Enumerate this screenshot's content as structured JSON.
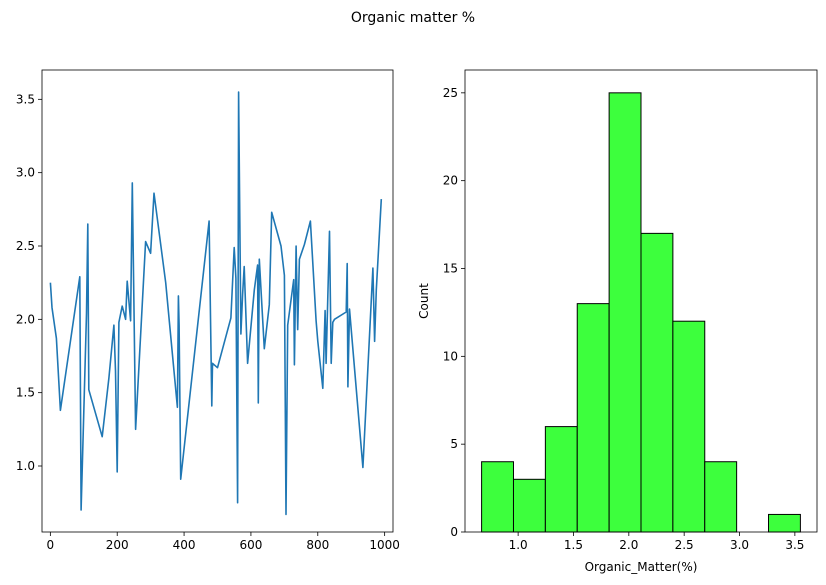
{
  "figure": {
    "title": "Organic matter %"
  },
  "chart_data": [
    {
      "type": "line",
      "title": "",
      "xlabel": "",
      "ylabel": "",
      "xlim": [
        -25,
        1025
      ],
      "ylim": [
        0.55,
        3.7
      ],
      "xticks": [
        0,
        200,
        400,
        600,
        800,
        1000
      ],
      "yticks": [
        1.0,
        1.5,
        2.0,
        2.5,
        3.0,
        3.5
      ],
      "grid": false,
      "color": "#1f77b4",
      "series": [
        {
          "x": [
            0,
            5,
            18,
            30,
            88,
            92,
            108,
            112,
            115,
            155,
            175,
            190,
            195,
            200,
            205,
            215,
            225,
            230,
            240,
            245,
            255,
            285,
            300,
            310,
            345,
            380,
            383,
            385,
            390,
            475,
            483,
            485,
            500,
            540,
            550,
            555,
            560,
            563,
            570,
            575,
            580,
            590,
            610,
            620,
            622,
            625,
            640,
            655,
            662,
            690,
            700,
            705,
            710,
            728,
            730,
            735,
            740,
            745,
            760,
            778,
            795,
            800,
            815,
            822,
            825,
            835,
            840,
            845,
            850,
            885,
            888,
            890,
            895,
            935,
            965,
            970,
            975,
            990
          ],
          "y": [
            2.25,
            2.08,
            1.87,
            1.38,
            2.29,
            0.7,
            2.04,
            2.65,
            1.52,
            1.2,
            1.6,
            1.96,
            1.65,
            0.96,
            1.98,
            2.09,
            2.0,
            2.26,
            1.99,
            2.93,
            1.25,
            2.53,
            2.45,
            2.86,
            2.25,
            1.4,
            2.16,
            1.96,
            0.91,
            2.67,
            1.41,
            1.7,
            1.67,
            2.01,
            2.49,
            2.28,
            0.75,
            3.55,
            1.9,
            2.17,
            2.36,
            1.7,
            2.2,
            2.37,
            1.43,
            2.41,
            1.8,
            2.1,
            2.73,
            2.5,
            2.3,
            0.67,
            1.96,
            2.27,
            1.69,
            2.5,
            1.93,
            2.41,
            2.51,
            2.67,
            1.99,
            1.85,
            1.53,
            2.06,
            1.7,
            2.6,
            1.7,
            1.98,
            2.0,
            2.05,
            2.38,
            1.54,
            2.07,
            0.99,
            2.35,
            1.85,
            2.2,
            2.82
          ]
        }
      ]
    },
    {
      "type": "bar",
      "subtype": "histogram",
      "title": "",
      "xlabel": "Organic_Matter(%)",
      "ylabel": "Count",
      "xlim": [
        0.52,
        3.7
      ],
      "ylim": [
        0,
        26.3
      ],
      "xticks": [
        1.0,
        1.5,
        2.0,
        2.5,
        3.0,
        3.5
      ],
      "yticks": [
        0,
        5,
        10,
        15,
        20,
        25
      ],
      "grid": false,
      "color": "#3dff3d",
      "edgecolor": "#000000",
      "bin_edges": [
        0.67,
        0.958,
        1.246,
        1.534,
        1.822,
        2.11,
        2.398,
        2.686,
        2.974,
        3.262,
        3.55
      ],
      "values": [
        4,
        3,
        6,
        13,
        25,
        17,
        12,
        4,
        0,
        1
      ]
    }
  ]
}
